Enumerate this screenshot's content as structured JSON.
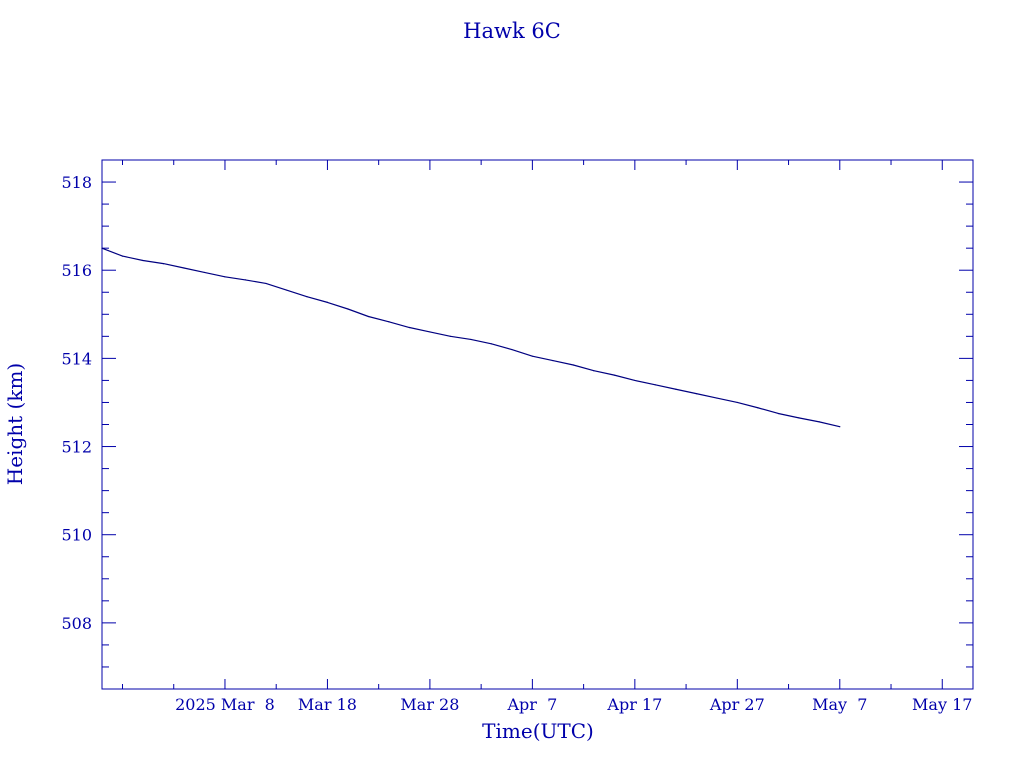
{
  "chart_data": {
    "type": "line",
    "title": "Hawk 6C",
    "xlabel": "Time(UTC)",
    "ylabel": "Height (km)",
    "x_unit": "date (UTC)",
    "xlim": [
      "2025-02-24",
      "2025-05-20"
    ],
    "ylim": [
      506.5,
      518.5
    ],
    "x_tick_labels": [
      {
        "date": "2025-03-08",
        "label": "2025 Mar  8"
      },
      {
        "date": "2025-03-18",
        "label": "Mar 18"
      },
      {
        "date": "2025-03-28",
        "label": "Mar 28"
      },
      {
        "date": "2025-04-07",
        "label": "Apr  7"
      },
      {
        "date": "2025-04-17",
        "label": "Apr 17"
      },
      {
        "date": "2025-04-27",
        "label": "Apr 27"
      },
      {
        "date": "2025-05-07",
        "label": "May  7"
      },
      {
        "date": "2025-05-17",
        "label": "May 17"
      }
    ],
    "y_ticks": [
      508,
      510,
      512,
      514,
      516,
      518
    ],
    "y_minor_step": 0.5,
    "x_minor_step_days": 5,
    "grid": false,
    "series": [
      {
        "color": "#000080",
        "points": [
          {
            "x": "2025-02-24",
            "y": 516.5
          },
          {
            "x": "2025-02-26",
            "y": 516.32
          },
          {
            "x": "2025-02-28",
            "y": 516.22
          },
          {
            "x": "2025-03-02",
            "y": 516.15
          },
          {
            "x": "2025-03-04",
            "y": 516.05
          },
          {
            "x": "2025-03-06",
            "y": 515.95
          },
          {
            "x": "2025-03-08",
            "y": 515.85
          },
          {
            "x": "2025-03-10",
            "y": 515.78
          },
          {
            "x": "2025-03-12",
            "y": 515.7
          },
          {
            "x": "2025-03-14",
            "y": 515.55
          },
          {
            "x": "2025-03-16",
            "y": 515.4
          },
          {
            "x": "2025-03-18",
            "y": 515.27
          },
          {
            "x": "2025-03-20",
            "y": 515.12
          },
          {
            "x": "2025-03-22",
            "y": 514.95
          },
          {
            "x": "2025-03-24",
            "y": 514.83
          },
          {
            "x": "2025-03-26",
            "y": 514.7
          },
          {
            "x": "2025-03-28",
            "y": 514.6
          },
          {
            "x": "2025-03-30",
            "y": 514.5
          },
          {
            "x": "2025-04-01",
            "y": 514.43
          },
          {
            "x": "2025-04-03",
            "y": 514.33
          },
          {
            "x": "2025-04-05",
            "y": 514.2
          },
          {
            "x": "2025-04-07",
            "y": 514.05
          },
          {
            "x": "2025-04-09",
            "y": 513.95
          },
          {
            "x": "2025-04-11",
            "y": 513.85
          },
          {
            "x": "2025-04-13",
            "y": 513.72
          },
          {
            "x": "2025-04-15",
            "y": 513.62
          },
          {
            "x": "2025-04-17",
            "y": 513.5
          },
          {
            "x": "2025-04-19",
            "y": 513.4
          },
          {
            "x": "2025-04-21",
            "y": 513.3
          },
          {
            "x": "2025-04-23",
            "y": 513.2
          },
          {
            "x": "2025-04-25",
            "y": 513.1
          },
          {
            "x": "2025-04-27",
            "y": 513.0
          },
          {
            "x": "2025-04-29",
            "y": 512.88
          },
          {
            "x": "2025-05-01",
            "y": 512.75
          },
          {
            "x": "2025-05-03",
            "y": 512.65
          },
          {
            "x": "2025-05-05",
            "y": 512.56
          },
          {
            "x": "2025-05-07",
            "y": 512.45
          }
        ]
      }
    ]
  }
}
